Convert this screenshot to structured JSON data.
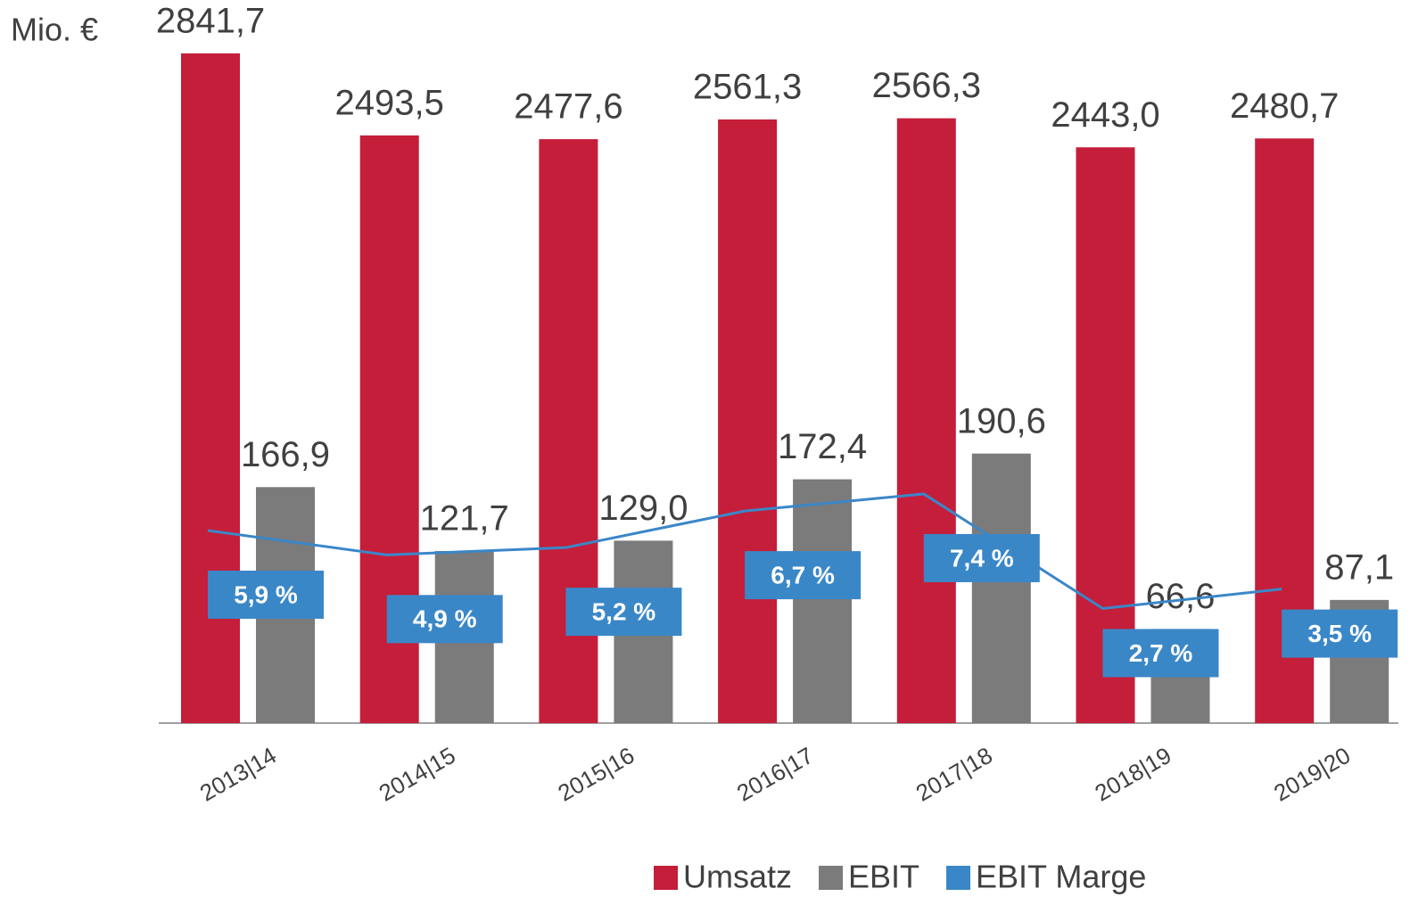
{
  "chart_data": {
    "type": "bar",
    "unit_label": "Mio. €",
    "categories": [
      "2013|14",
      "2014|15",
      "2015|16",
      "2016|17",
      "2017|18",
      "2018|19",
      "2019|20"
    ],
    "series": [
      {
        "name": "Umsatz",
        "color": "#c41e3a",
        "axis": "y",
        "values": [
          2841.7,
          2493.5,
          2477.6,
          2561.3,
          2566.3,
          2443.0,
          2480.7
        ],
        "value_labels": [
          "2841,7",
          "2493,5",
          "2477,6",
          "2561,3",
          "2566,3",
          "2443,0",
          "2480,7"
        ]
      },
      {
        "name": "EBIT",
        "color": "#7b7b7b",
        "axis": "y2",
        "values": [
          166.9,
          121.7,
          129.0,
          172.4,
          190.6,
          66.6,
          87.1
        ],
        "value_labels": [
          "166,9",
          "121,7",
          "129,0",
          "172,4",
          "190,6",
          "66,6",
          "87,1"
        ]
      },
      {
        "name": "EBIT Marge",
        "color": "#3a87c8",
        "axis": "y3",
        "type": "line",
        "values": [
          5.9,
          4.9,
          5.2,
          6.7,
          7.4,
          2.7,
          3.5
        ],
        "value_labels": [
          "5,9 %",
          "4,9 %",
          "5,2 %",
          "6,7 %",
          "7,4 %",
          "2,7 %",
          "3,5 %"
        ]
      }
    ],
    "ylim": [
      0,
      3000
    ],
    "y2lim": [
      0,
      500
    ],
    "y3lim": [
      -2,
      27
    ]
  }
}
